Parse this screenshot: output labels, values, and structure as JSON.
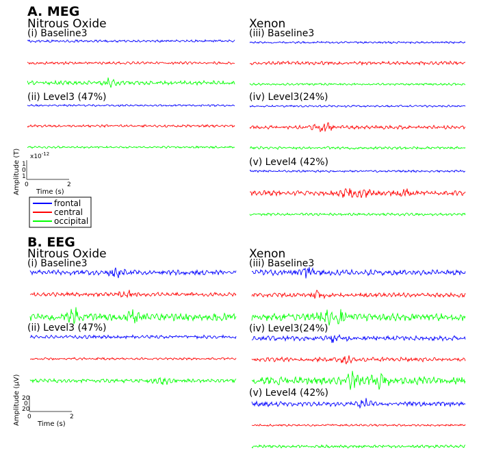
{
  "figure": {
    "panels": [
      {
        "id": "meg",
        "title": "A. MEG",
        "columns": [
          {
            "drug": "Nitrous Oxide",
            "conditions": [
              "(i) Baseline3",
              "(ii) Level3 (47%)"
            ]
          },
          {
            "drug": "Xenon",
            "conditions": [
              "(iii) Baseline3",
              "(iv) Level3(24%)",
              "(v) Level4 (42%)"
            ]
          }
        ],
        "scale_bar": {
          "ylabel": "Amplitude (T)",
          "exponent_base": "x10",
          "exponent_power": "-12",
          "yticks": [
            "1",
            "0",
            "1"
          ],
          "xticks": [
            "0",
            "2"
          ],
          "xlabel": "Time (s)"
        }
      },
      {
        "id": "eeg",
        "title": "B. EEG",
        "columns": [
          {
            "drug": "Nitrous Oxide",
            "conditions": [
              "(i) Baseline3",
              "(ii) Level3 (47%)"
            ]
          },
          {
            "drug": "Xenon",
            "conditions": [
              "(iii) Baseline3",
              "(iv) Level3(24%)",
              "(v) Level4 (42%)"
            ]
          }
        ],
        "scale_bar": {
          "ylabel": "Amplitude (μV)",
          "yticks": [
            "20",
            "0",
            "20"
          ],
          "xticks": [
            "0",
            "2"
          ],
          "xlabel": "Time (s)"
        }
      }
    ],
    "legend": [
      {
        "label": "frontal",
        "color": "#0000ff"
      },
      {
        "label": "central",
        "color": "#ff0000"
      },
      {
        "label": "occipital",
        "color": "#00ff00"
      }
    ]
  },
  "chart_data": {
    "type": "line",
    "title": "",
    "series": [
      {
        "name": "frontal",
        "color": "#0000ff"
      },
      {
        "name": "central",
        "color": "#ff0000"
      },
      {
        "name": "occipital",
        "color": "#00ff00"
      }
    ],
    "x_unit": "s",
    "x_scale_bar": [
      0,
      2
    ],
    "meg_amplitude_scale": {
      "unit": "T",
      "ticks": [
        1,
        0,
        1
      ],
      "exponent": -12
    },
    "eeg_amplitude_scale": {
      "unit": "μV",
      "ticks": [
        20,
        0,
        20
      ]
    },
    "traces": [
      {
        "panel": "A. MEG",
        "drug": "Nitrous Oxide",
        "condition": "(i) Baseline3",
        "channels": [
          "frontal",
          "central",
          "occipital"
        ]
      },
      {
        "panel": "A. MEG",
        "drug": "Nitrous Oxide",
        "condition": "(ii) Level3 (47%)",
        "channels": [
          "frontal",
          "central",
          "occipital"
        ]
      },
      {
        "panel": "A. MEG",
        "drug": "Xenon",
        "condition": "(iii) Baseline3",
        "channels": [
          "frontal",
          "central",
          "occipital"
        ]
      },
      {
        "panel": "A. MEG",
        "drug": "Xenon",
        "condition": "(iv) Level3(24%)",
        "channels": [
          "frontal",
          "central",
          "occipital"
        ]
      },
      {
        "panel": "A. MEG",
        "drug": "Xenon",
        "condition": "(v) Level4 (42%)",
        "channels": [
          "frontal",
          "central",
          "occipital"
        ]
      },
      {
        "panel": "B. EEG",
        "drug": "Nitrous Oxide",
        "condition": "(i) Baseline3",
        "channels": [
          "frontal",
          "central",
          "occipital"
        ]
      },
      {
        "panel": "B. EEG",
        "drug": "Nitrous Oxide",
        "condition": "(ii) Level3 (47%)",
        "channels": [
          "frontal",
          "central",
          "occipital"
        ]
      },
      {
        "panel": "B. EEG",
        "drug": "Xenon",
        "condition": "(iii) Baseline3",
        "channels": [
          "frontal",
          "central",
          "occipital"
        ]
      },
      {
        "panel": "B. EEG",
        "drug": "Xenon",
        "condition": "(iv) Level3(24%)",
        "channels": [
          "frontal",
          "central",
          "occipital"
        ]
      },
      {
        "panel": "B. EEG",
        "drug": "Xenon",
        "condition": "(v) Level4 (42%)",
        "channels": [
          "frontal",
          "central",
          "occipital"
        ]
      }
    ]
  }
}
